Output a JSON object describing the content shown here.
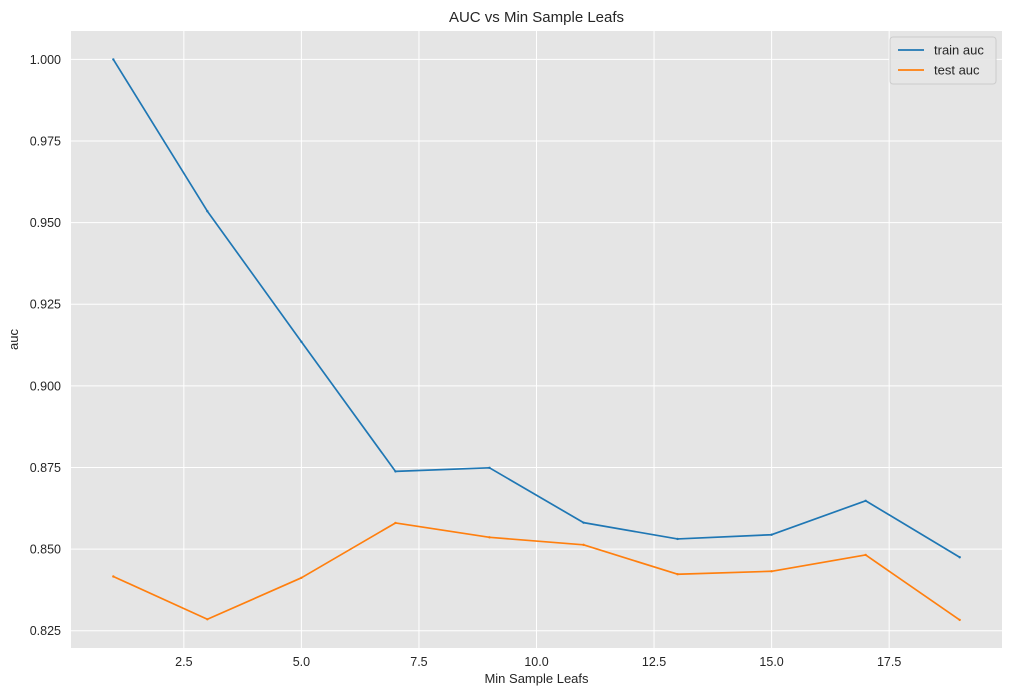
{
  "chart_data": {
    "type": "line",
    "title": "AUC vs Min Sample Leafs",
    "xlabel": "Min Sample Leafs",
    "ylabel": "auc",
    "x": [
      1,
      3,
      5,
      7,
      9,
      11,
      13,
      15,
      17,
      19
    ],
    "series": [
      {
        "name": "train auc",
        "color": "#1f77b4",
        "values": [
          1.0,
          0.9535,
          0.9135,
          0.8738,
          0.8749,
          0.8581,
          0.8531,
          0.8544,
          0.8648,
          0.8475
        ]
      },
      {
        "name": "test auc",
        "color": "#ff7f0e",
        "values": [
          0.8416,
          0.8285,
          0.8412,
          0.858,
          0.8536,
          0.8513,
          0.8423,
          0.8432,
          0.8482,
          0.8283
        ]
      }
    ],
    "xlim": [
      0.1,
      19.9
    ],
    "ylim": [
      0.8197,
      1.0087
    ],
    "xticks": [
      2.5,
      5.0,
      7.5,
      10.0,
      12.5,
      15.0,
      17.5
    ],
    "xtick_labels": [
      "2.5",
      "5.0",
      "7.5",
      "10.0",
      "12.5",
      "15.0",
      "17.5"
    ],
    "yticks": [
      0.825,
      0.85,
      0.875,
      0.9,
      0.925,
      0.95,
      0.975,
      1.0
    ],
    "ytick_labels": [
      "0.825",
      "0.850",
      "0.875",
      "0.900",
      "0.925",
      "0.950",
      "0.975",
      "1.000"
    ],
    "grid": true,
    "legend_position": "top-right",
    "background_color": "#e5e5e5",
    "grid_color": "#ffffff"
  }
}
